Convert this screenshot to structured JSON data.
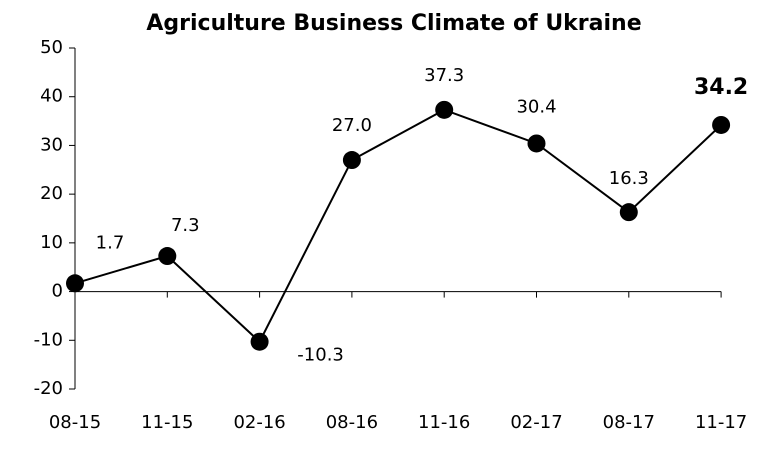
{
  "chart_data": {
    "type": "line",
    "title": "Agriculture Business Climate of Ukraine",
    "categories": [
      "08-15",
      "11-15",
      "02-16",
      "08-16",
      "11-16",
      "02-17",
      "08-17",
      "11-17"
    ],
    "series": [
      {
        "name": null,
        "color": "#000000",
        "values": [
          1.7,
          7.3,
          -10.3,
          27.0,
          37.3,
          30.4,
          16.3,
          34.2
        ],
        "value_labels": [
          "1.7",
          "7.3",
          "-10.3",
          "27.0",
          "37.3",
          "30.4",
          "16.3",
          "34.2"
        ]
      }
    ],
    "ylim": [
      -20,
      50
    ],
    "yticks": [
      -20,
      -10,
      0,
      10,
      20,
      30,
      40,
      50
    ],
    "grid": false
  }
}
